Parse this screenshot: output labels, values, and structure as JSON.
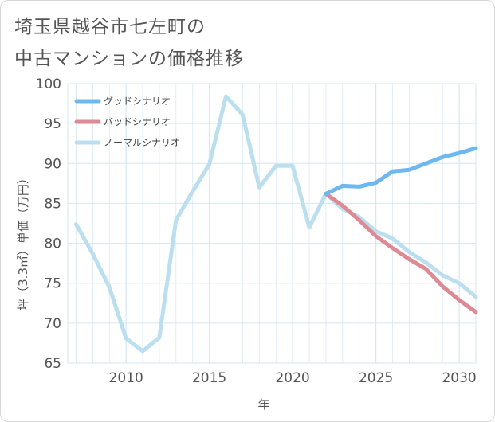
{
  "title": {
    "line1": "埼玉県越谷市七左町の",
    "line2": "中古マンションの価格推移"
  },
  "colors": {
    "good": "#6db8ee",
    "bad": "#dd8a94",
    "normal": "#bcdff0",
    "grid": "#d6e6f2",
    "text": "#555555"
  },
  "chart_data": {
    "type": "line",
    "title": "埼玉県越谷市七左町の中古マンションの価格推移",
    "xlabel": "年",
    "ylabel": "坪（3.3㎡）単価（万円）",
    "xlim": [
      2006.5,
      2031
    ],
    "ylim": [
      65,
      100
    ],
    "x_ticks": [
      2010,
      2015,
      2020,
      2025,
      2030
    ],
    "y_ticks": [
      65,
      70,
      75,
      80,
      85,
      90,
      95,
      100
    ],
    "legend_position": "top-left",
    "series": [
      {
        "key": "good",
        "name": "グッドシナリオ",
        "x": [
          2022,
          2023,
          2024,
          2025,
          2026,
          2027,
          2028,
          2029,
          2030,
          2031
        ],
        "values": [
          86.2,
          87.2,
          87.1,
          87.6,
          89.0,
          89.2,
          90.0,
          90.8,
          91.3,
          91.9
        ]
      },
      {
        "key": "bad",
        "name": "バッドシナリオ",
        "x": [
          2022,
          2023,
          2024,
          2025,
          2026,
          2027,
          2028,
          2029,
          2030,
          2031
        ],
        "values": [
          86.2,
          84.7,
          82.9,
          80.9,
          79.4,
          78.0,
          76.8,
          74.6,
          72.9,
          71.4
        ]
      },
      {
        "key": "normal",
        "name": "ノーマルシナリオ",
        "x": [
          2007,
          2008,
          2009,
          2010,
          2011,
          2012,
          2013,
          2014,
          2015,
          2016,
          2017,
          2018,
          2019,
          2020,
          2021,
          2022,
          2023,
          2024,
          2025,
          2026,
          2027,
          2028,
          2029,
          2030,
          2031
        ],
        "values": [
          82.4,
          78.7,
          74.5,
          68.1,
          66.5,
          68.2,
          82.9,
          86.5,
          89.9,
          98.4,
          96.1,
          87.0,
          89.7,
          89.7,
          82.0,
          86.2,
          84.3,
          83.3,
          81.5,
          80.6,
          78.9,
          77.6,
          76.0,
          75.0,
          73.3
        ]
      }
    ]
  }
}
